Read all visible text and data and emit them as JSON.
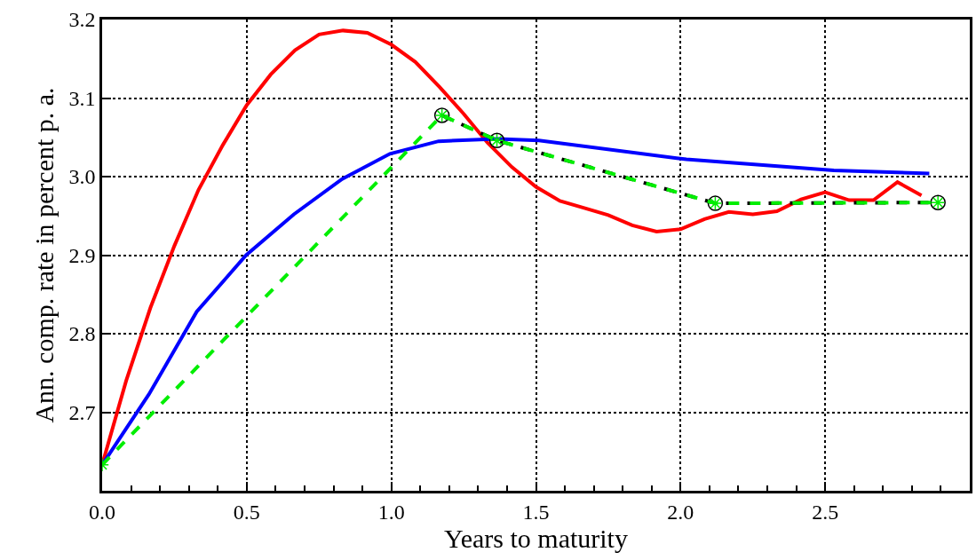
{
  "chart_data": {
    "type": "line",
    "xlabel": "Years to maturity",
    "ylabel": "Ann. comp. rate in percent p. a.",
    "xlim": [
      0,
      3.0
    ],
    "ylim": [
      2.6,
      3.2
    ],
    "xticks": [
      {
        "value": 0,
        "label": "0.0"
      },
      {
        "value": 0.5,
        "label": "0.5"
      },
      {
        "value": 1,
        "label": "1.0"
      },
      {
        "value": 1.5,
        "label": "1.5"
      },
      {
        "value": 2,
        "label": "2.0"
      },
      {
        "value": 2.5,
        "label": "2.5"
      }
    ],
    "yticks": [
      {
        "value": 2.7,
        "label": "2.7"
      },
      {
        "value": 2.8,
        "label": "2.8"
      },
      {
        "value": 2.9,
        "label": "2.9"
      },
      {
        "value": 3.0,
        "label": "3.0"
      },
      {
        "value": 3.1,
        "label": "3.1"
      },
      {
        "value": 3.2,
        "label": "3.2"
      }
    ],
    "grid": true,
    "line_style": "solid",
    "marker": "none",
    "series": [
      {
        "color": "#ff0000",
        "x": [
          0,
          0.083,
          0.167,
          0.25,
          0.333,
          0.417,
          0.5,
          0.583,
          0.667,
          0.75,
          0.833,
          0.917,
          1.0,
          1.083,
          1.167,
          1.25,
          1.333,
          1.417,
          1.5,
          1.583,
          1.667,
          1.75,
          1.833,
          1.917,
          2.0,
          2.083,
          2.167,
          2.25,
          2.333,
          2.417,
          2.5,
          2.583,
          2.667,
          2.75,
          2.833
        ],
        "values": [
          2.633,
          2.74,
          2.833,
          2.912,
          2.983,
          3.04,
          3.091,
          3.13,
          3.161,
          3.181,
          3.186,
          3.183,
          3.168,
          3.146,
          3.114,
          3.08,
          3.043,
          3.012,
          2.987,
          2.969,
          2.96,
          2.951,
          2.938,
          2.93,
          2.933,
          2.946,
          2.955,
          2.952,
          2.956,
          2.971,
          2.98,
          2.97,
          2.97,
          2.993,
          2.976
        ]
      },
      {
        "color": "#0000ff",
        "x": [
          0,
          0.162,
          0.327,
          0.498,
          0.663,
          0.83,
          0.995,
          1.163,
          1.366,
          1.51,
          2.02,
          2.53,
          2.86
        ],
        "values": [
          2.633,
          2.723,
          2.828,
          2.9,
          2.952,
          2.997,
          3.029,
          3.045,
          3.048,
          3.046,
          3.022,
          3.008,
          3.004
        ]
      },
      {
        "color": "#000000",
        "line_style": "dashed",
        "marker": "circle",
        "x": [
          1.175,
          1.365,
          2.12,
          2.89
        ],
        "values": [
          3.078,
          3.046,
          2.966,
          2.967
        ]
      },
      {
        "color": "#00ee00",
        "line_style": "dashed",
        "marker": "cross",
        "x": [
          0,
          1.175,
          1.365,
          2.12,
          2.89
        ],
        "values": [
          2.633,
          3.078,
          3.046,
          2.966,
          2.967
        ]
      }
    ]
  }
}
